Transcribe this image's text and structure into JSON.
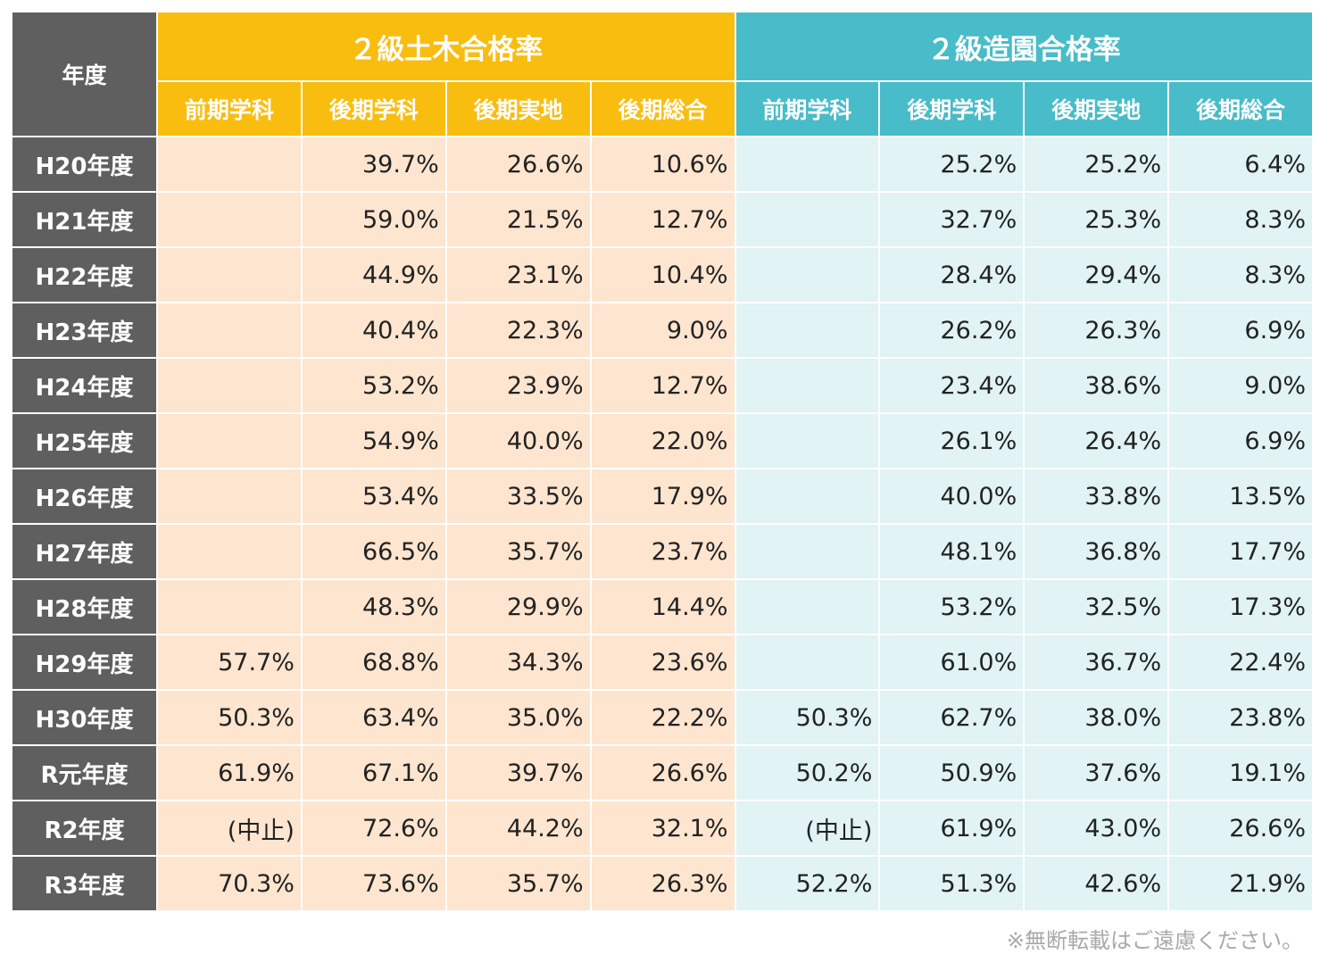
{
  "chart_data": {
    "type": "table",
    "title": "",
    "header": {
      "year_label": "年度",
      "groups": [
        {
          "name": "２級土木合格率",
          "color": "#f9bd0f",
          "cell_color": "#fde5cf"
        },
        {
          "name": "２級造園合格率",
          "color": "#48bcc8",
          "cell_color": "#e1f3f4"
        }
      ],
      "columns": [
        "前期学科",
        "後期学科",
        "後期実地",
        "後期総合"
      ]
    },
    "rows": [
      {
        "year": "H20年度",
        "civil": [
          "",
          "39.7%",
          "26.6%",
          "10.6%"
        ],
        "landscape": [
          "",
          "25.2%",
          "25.2%",
          "6.4%"
        ]
      },
      {
        "year": "H21年度",
        "civil": [
          "",
          "59.0%",
          "21.5%",
          "12.7%"
        ],
        "landscape": [
          "",
          "32.7%",
          "25.3%",
          "8.3%"
        ]
      },
      {
        "year": "H22年度",
        "civil": [
          "",
          "44.9%",
          "23.1%",
          "10.4%"
        ],
        "landscape": [
          "",
          "28.4%",
          "29.4%",
          "8.3%"
        ]
      },
      {
        "year": "H23年度",
        "civil": [
          "",
          "40.4%",
          "22.3%",
          "9.0%"
        ],
        "landscape": [
          "",
          "26.2%",
          "26.3%",
          "6.9%"
        ]
      },
      {
        "year": "H24年度",
        "civil": [
          "",
          "53.2%",
          "23.9%",
          "12.7%"
        ],
        "landscape": [
          "",
          "23.4%",
          "38.6%",
          "9.0%"
        ]
      },
      {
        "year": "H25年度",
        "civil": [
          "",
          "54.9%",
          "40.0%",
          "22.0%"
        ],
        "landscape": [
          "",
          "26.1%",
          "26.4%",
          "6.9%"
        ]
      },
      {
        "year": "H26年度",
        "civil": [
          "",
          "53.4%",
          "33.5%",
          "17.9%"
        ],
        "landscape": [
          "",
          "40.0%",
          "33.8%",
          "13.5%"
        ]
      },
      {
        "year": "H27年度",
        "civil": [
          "",
          "66.5%",
          "35.7%",
          "23.7%"
        ],
        "landscape": [
          "",
          "48.1%",
          "36.8%",
          "17.7%"
        ]
      },
      {
        "year": "H28年度",
        "civil": [
          "",
          "48.3%",
          "29.9%",
          "14.4%"
        ],
        "landscape": [
          "",
          "53.2%",
          "32.5%",
          "17.3%"
        ]
      },
      {
        "year": "H29年度",
        "civil": [
          "57.7%",
          "68.8%",
          "34.3%",
          "23.6%"
        ],
        "landscape": [
          "",
          "61.0%",
          "36.7%",
          "22.4%"
        ]
      },
      {
        "year": "H30年度",
        "civil": [
          "50.3%",
          "63.4%",
          "35.0%",
          "22.2%"
        ],
        "landscape": [
          "50.3%",
          "62.7%",
          "38.0%",
          "23.8%"
        ]
      },
      {
        "year": "R元年度",
        "civil": [
          "61.9%",
          "67.1%",
          "39.7%",
          "26.6%"
        ],
        "landscape": [
          "50.2%",
          "50.9%",
          "37.6%",
          "19.1%"
        ]
      },
      {
        "year": "R2年度",
        "civil": [
          "(中止)",
          "72.6%",
          "44.2%",
          "32.1%"
        ],
        "landscape": [
          "(中止)",
          "61.9%",
          "43.0%",
          "26.6%"
        ]
      },
      {
        "year": "R3年度",
        "civil": [
          "70.3%",
          "73.6%",
          "35.7%",
          "26.3%"
        ],
        "landscape": [
          "52.2%",
          "51.3%",
          "42.6%",
          "21.9%"
        ]
      }
    ]
  },
  "footnote": "※無断転載はご遠慮ください。"
}
